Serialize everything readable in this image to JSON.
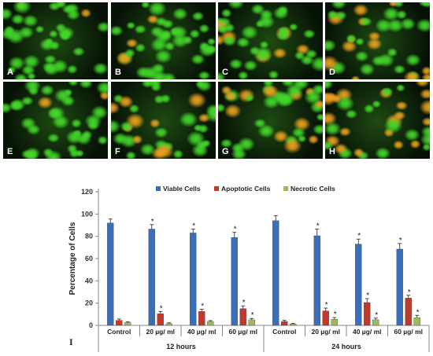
{
  "panels": [
    "A",
    "B",
    "C",
    "D",
    "E",
    "F",
    "G",
    "H"
  ],
  "figure_label": "I",
  "colors": {
    "viable": "#3B6DB8",
    "apoptotic": "#C0392B",
    "necrotic": "#9BBB59",
    "micro_bg": "#071206",
    "cell_green": "#43d62a",
    "cell_orange": "#e8a020"
  },
  "chart_data": {
    "type": "bar",
    "ylabel": "Percentage of Cells",
    "ylim": [
      0,
      120
    ],
    "yticks": [
      "0",
      "20",
      "40",
      "60",
      "80",
      "100",
      "120"
    ],
    "categories": [
      "Control",
      "20 µg/ ml",
      "40 µg/ ml",
      "60 µg/ ml",
      "Control",
      "20 µg/ ml",
      "40 µg/ ml",
      "60 µg/ ml"
    ],
    "groups": [
      {
        "label": "12 hours",
        "span": [
          0,
          3
        ]
      },
      {
        "label": "24 hours",
        "span": [
          4,
          7
        ]
      }
    ],
    "series": [
      {
        "name": "Viable Cells",
        "values": [
          92,
          86.5,
          83,
          79,
          94,
          80.5,
          73,
          68.5
        ],
        "errors": [
          3.5,
          4,
          3.5,
          4.5,
          4.5,
          6,
          4.5,
          5
        ]
      },
      {
        "name": "Apoptotic Cells",
        "values": [
          4.5,
          10.5,
          12.5,
          15,
          3.5,
          13,
          20.5,
          24.5
        ],
        "errors": [
          1.2,
          2,
          2,
          2.5,
          1,
          2.5,
          3.5,
          2.5
        ]
      },
      {
        "name": "Necrotic Cells",
        "values": [
          2.5,
          1.5,
          3.5,
          5,
          1.2,
          5.5,
          5,
          7
        ],
        "errors": [
          0.8,
          0.8,
          0.8,
          1.2,
          0.5,
          1.5,
          1.5,
          2
        ]
      }
    ],
    "significance": {
      "marker": "*",
      "Viable Cells": [
        false,
        true,
        true,
        true,
        false,
        true,
        true,
        true
      ],
      "Apoptotic Cells": [
        false,
        true,
        true,
        true,
        false,
        true,
        true,
        true
      ],
      "Necrotic Cells": [
        false,
        false,
        false,
        true,
        false,
        true,
        true,
        true
      ]
    },
    "legend": "top"
  }
}
